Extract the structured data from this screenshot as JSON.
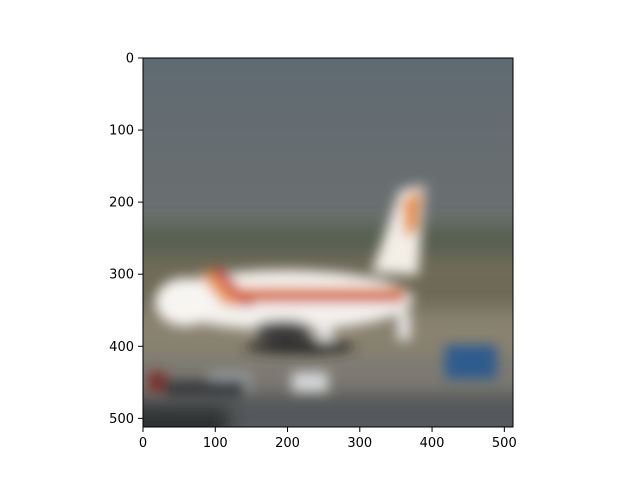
{
  "chart_data": {
    "type": "image",
    "image_description_icon": "blurred-airplane-photo",
    "xlim": [
      0,
      512
    ],
    "ylim": [
      512,
      0
    ],
    "xticks": [
      "0",
      "100",
      "200",
      "300",
      "400",
      "500"
    ],
    "yticks": [
      "0",
      "100",
      "200",
      "300",
      "400",
      "500"
    ],
    "xtick_values": [
      0,
      100,
      200,
      300,
      400,
      500
    ],
    "ytick_values": [
      0,
      100,
      200,
      300,
      400,
      500
    ]
  }
}
